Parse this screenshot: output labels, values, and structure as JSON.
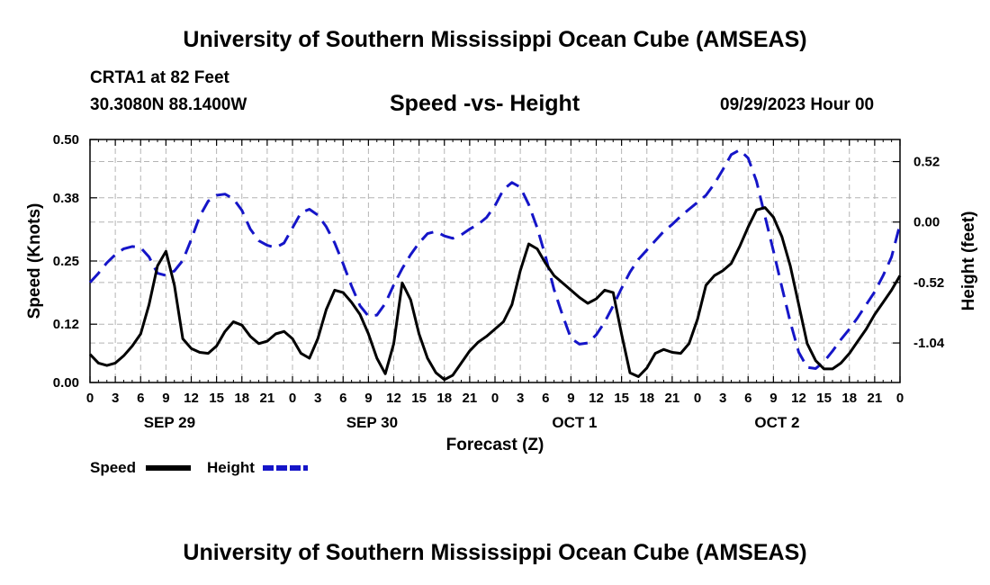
{
  "header": {
    "title_top": "University of Southern Mississippi Ocean Cube (AMSEAS)",
    "title_bottom": "University of Southern Mississippi Ocean Cube (AMSEAS)",
    "station": "CRTA1 at 82 Feet",
    "coords": "30.3080N  88.1400W",
    "datetime": "09/29/2023 Hour 00"
  },
  "chart_data": {
    "type": "line",
    "title": "Speed -vs- Height",
    "xlabel": "Forecast (Z)",
    "ylabel_left": "Speed (Knots)",
    "ylabel_right": "Height (feet)",
    "x_range_hours": [
      0,
      96
    ],
    "x_ticks": [
      "0",
      "3",
      "6",
      "9",
      "12",
      "15",
      "18",
      "21",
      "0",
      "3",
      "6",
      "9",
      "12",
      "15",
      "18",
      "21",
      "0",
      "3",
      "6",
      "9",
      "12",
      "15",
      "18",
      "21",
      "0",
      "3",
      "6",
      "9",
      "12",
      "15",
      "18",
      "21",
      "0"
    ],
    "day_labels": [
      "SEP 29",
      "SEP 30",
      "OCT 1",
      "OCT 2"
    ],
    "left_axis": {
      "ticks": [
        "0.00",
        "0.12",
        "0.25",
        "0.38",
        "0.50"
      ],
      "ylim": [
        0,
        0.5
      ]
    },
    "right_axis": {
      "ticks": [
        "-1.04",
        "-0.52",
        "0.00",
        "0.52"
      ],
      "ylim": [
        -1.38,
        0.71
      ]
    },
    "grid": true,
    "legend": [
      "Speed",
      "Height"
    ],
    "series": [
      {
        "name": "Speed",
        "axis": "left",
        "color": "#000000",
        "style": "solid",
        "x": [
          0,
          1,
          2,
          3,
          4,
          5,
          6,
          7,
          8,
          9,
          10,
          11,
          12,
          13,
          14,
          15,
          16,
          17,
          18,
          19,
          20,
          21,
          22,
          23,
          24,
          25,
          26,
          27,
          28,
          29,
          30,
          31,
          32,
          33,
          34,
          35,
          36,
          37,
          38,
          39,
          40,
          41,
          42,
          43,
          44,
          45,
          46,
          47,
          48,
          49,
          50,
          51,
          52,
          53,
          54,
          55,
          56,
          57,
          58,
          59,
          60,
          61,
          62,
          63,
          64,
          65,
          66,
          67,
          68,
          69,
          70,
          71,
          72,
          73,
          74,
          75,
          76,
          77,
          78,
          79,
          80,
          81,
          82,
          83,
          84,
          85,
          86,
          87,
          88,
          89,
          90,
          91,
          92,
          93,
          94,
          95,
          96
        ],
        "values": [
          0.058,
          0.04,
          0.035,
          0.04,
          0.055,
          0.075,
          0.1,
          0.16,
          0.24,
          0.27,
          0.2,
          0.09,
          0.07,
          0.062,
          0.06,
          0.075,
          0.105,
          0.125,
          0.118,
          0.095,
          0.08,
          0.085,
          0.1,
          0.105,
          0.09,
          0.06,
          0.05,
          0.09,
          0.15,
          0.19,
          0.185,
          0.165,
          0.14,
          0.1,
          0.05,
          0.018,
          0.08,
          0.205,
          0.17,
          0.1,
          0.05,
          0.02,
          0.006,
          0.015,
          0.04,
          0.065,
          0.083,
          0.095,
          0.11,
          0.125,
          0.16,
          0.23,
          0.285,
          0.275,
          0.245,
          0.22,
          0.205,
          0.19,
          0.175,
          0.163,
          0.172,
          0.19,
          0.185,
          0.1,
          0.02,
          0.012,
          0.03,
          0.06,
          0.068,
          0.062,
          0.06,
          0.08,
          0.13,
          0.2,
          0.22,
          0.23,
          0.245,
          0.28,
          0.32,
          0.355,
          0.36,
          0.34,
          0.3,
          0.24,
          0.16,
          0.08,
          0.045,
          0.028,
          0.028,
          0.04,
          0.06,
          0.085,
          0.11,
          0.14,
          0.165,
          0.19,
          0.22
        ]
      },
      {
        "name": "Height",
        "axis": "right",
        "color": "#1515c8",
        "style": "dashed",
        "x": [
          0,
          1,
          2,
          3,
          4,
          5,
          6,
          7,
          8,
          9,
          10,
          11,
          12,
          13,
          14,
          15,
          16,
          17,
          18,
          19,
          20,
          21,
          22,
          23,
          24,
          25,
          26,
          27,
          28,
          29,
          30,
          31,
          32,
          33,
          34,
          35,
          36,
          37,
          38,
          39,
          40,
          41,
          42,
          43,
          44,
          45,
          46,
          47,
          48,
          49,
          50,
          51,
          52,
          53,
          54,
          55,
          56,
          57,
          58,
          59,
          60,
          61,
          62,
          63,
          64,
          65,
          66,
          67,
          68,
          69,
          70,
          71,
          72,
          73,
          74,
          75,
          76,
          77,
          78,
          79,
          80,
          81,
          82,
          83,
          84,
          85,
          86,
          87,
          88,
          89,
          90,
          91,
          92,
          93,
          94,
          95,
          96
        ],
        "values": [
          -0.52,
          -0.44,
          -0.35,
          -0.28,
          -0.23,
          -0.21,
          -0.22,
          -0.3,
          -0.44,
          -0.46,
          -0.42,
          -0.33,
          -0.15,
          0.05,
          0.18,
          0.23,
          0.24,
          0.2,
          0.1,
          -0.06,
          -0.16,
          -0.2,
          -0.22,
          -0.18,
          -0.05,
          0.08,
          0.11,
          0.06,
          -0.04,
          -0.18,
          -0.36,
          -0.55,
          -0.72,
          -0.81,
          -0.8,
          -0.7,
          -0.54,
          -0.4,
          -0.28,
          -0.18,
          -0.1,
          -0.08,
          -0.12,
          -0.14,
          -0.11,
          -0.06,
          -0.02,
          0.04,
          0.14,
          0.28,
          0.34,
          0.3,
          0.15,
          -0.05,
          -0.3,
          -0.58,
          -0.8,
          -1.0,
          -1.05,
          -1.04,
          -0.97,
          -0.86,
          -0.72,
          -0.57,
          -0.43,
          -0.32,
          -0.24,
          -0.16,
          -0.08,
          -0.02,
          0.05,
          0.11,
          0.17,
          0.23,
          0.33,
          0.45,
          0.58,
          0.62,
          0.55,
          0.35,
          0.05,
          -0.25,
          -0.56,
          -0.86,
          -1.12,
          -1.25,
          -1.26,
          -1.2,
          -1.11,
          -1.01,
          -0.92,
          -0.82,
          -0.71,
          -0.6,
          -0.46,
          -0.3,
          -0.02
        ]
      }
    ]
  }
}
